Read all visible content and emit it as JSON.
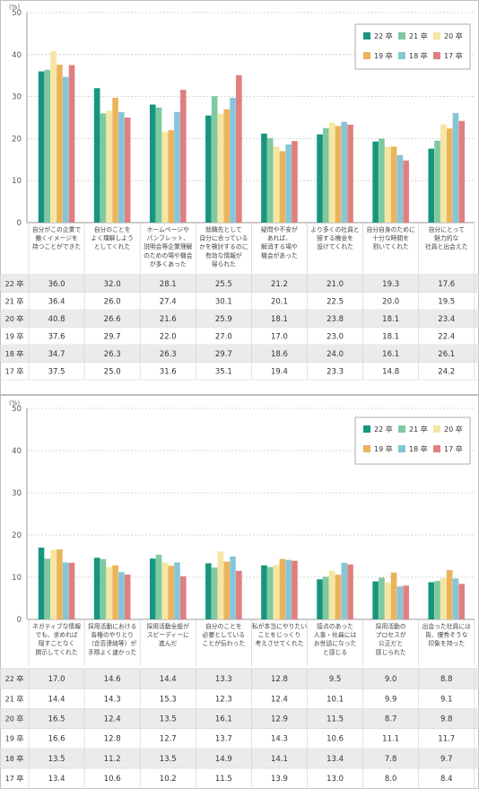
{
  "chart_data": [
    {
      "type": "bar",
      "unit": "(%)",
      "ylim": [
        0,
        50
      ],
      "yticks": [
        "0",
        "10",
        "20",
        "30",
        "40",
        "50"
      ],
      "grid": true,
      "legend_position": "top-right",
      "categories": [
        [
          "自分がこの企業で",
          "働くイメージを",
          "持つことができた"
        ],
        [
          "自分のことを",
          "よく理解しよう",
          "としてくれた"
        ],
        [
          "ホームページや",
          "パンフレット、",
          "説明会等企業理解",
          "のための場や機会",
          "が多くあった"
        ],
        [
          "就職先として",
          "自分に合っている",
          "かを検討するのに",
          "有効な情報が",
          "得られた"
        ],
        [
          "疑問や不安が",
          "あれば、",
          "解消する場や",
          "機会があった"
        ],
        [
          "より多くの社員と",
          "接する機会を",
          "設けてくれた"
        ],
        [
          "自分自身のために",
          "十分な時間を",
          "割いてくれた"
        ],
        [
          "自分にとって",
          "魅力的な",
          "社員と出会えた"
        ]
      ],
      "series": [
        {
          "name": "22 卒",
          "color": "#17957f",
          "values": [
            36.0,
            32.0,
            28.1,
            25.5,
            21.2,
            21.0,
            19.3,
            17.6
          ]
        },
        {
          "name": "21 卒",
          "color": "#7fc9a0",
          "values": [
            36.4,
            26.0,
            27.4,
            30.1,
            20.1,
            22.5,
            20.0,
            19.5
          ]
        },
        {
          "name": "20 卒",
          "color": "#f6e6a1",
          "values": [
            40.8,
            26.6,
            21.6,
            25.9,
            18.1,
            23.8,
            18.1,
            23.4
          ]
        },
        {
          "name": "19 卒",
          "color": "#eab45c",
          "values": [
            37.6,
            29.7,
            22.0,
            27.0,
            17.0,
            23.0,
            18.1,
            22.4
          ]
        },
        {
          "name": "18 卒",
          "color": "#86c5d6",
          "values": [
            34.7,
            26.3,
            26.3,
            29.7,
            18.6,
            24.0,
            16.1,
            26.1
          ]
        },
        {
          "name": "17 卒",
          "color": "#e07f7f",
          "values": [
            37.5,
            25.0,
            31.6,
            35.1,
            19.4,
            23.3,
            14.8,
            24.2
          ]
        }
      ]
    },
    {
      "type": "bar",
      "unit": "(%)",
      "ylim": [
        0,
        50
      ],
      "yticks": [
        "0",
        "10",
        "20",
        "30",
        "40",
        "50"
      ],
      "grid": true,
      "legend_position": "top-right",
      "categories": [
        [
          "ネガティブな情報",
          "でも、求めれば",
          "隠すことなく",
          "開示してくれた"
        ],
        [
          "採用活動における",
          "各種のやりとり",
          "（合否連絡等）が",
          "手際よく速かった"
        ],
        [
          "採用活動全般が",
          "スピーディーに",
          "進んだ"
        ],
        [
          "自分のことを",
          "必要としている",
          "ことが伝わった"
        ],
        [
          "私が本当にやりたい",
          "ことをじっくり",
          "考えさせてくれた"
        ],
        [
          "接点のあった",
          "人事・社員には",
          "お世話になった",
          "と感じる"
        ],
        [
          "採用活動の",
          "プロセスが",
          "公正だと",
          "感じられた"
        ],
        [
          "出会った社員には",
          "皆、優秀そうな",
          "印象を持った"
        ]
      ],
      "series": [
        {
          "name": "22 卒",
          "color": "#17957f",
          "values": [
            17.0,
            14.6,
            14.4,
            13.3,
            12.8,
            9.5,
            9.0,
            8.8
          ]
        },
        {
          "name": "21 卒",
          "color": "#7fc9a0",
          "values": [
            14.4,
            14.3,
            15.3,
            12.3,
            12.4,
            10.1,
            9.9,
            9.1
          ]
        },
        {
          "name": "20 卒",
          "color": "#f6e6a1",
          "values": [
            16.5,
            12.4,
            13.5,
            16.1,
            12.9,
            11.5,
            8.7,
            9.8
          ]
        },
        {
          "name": "19 卒",
          "color": "#eab45c",
          "values": [
            16.6,
            12.8,
            12.7,
            13.7,
            14.3,
            10.6,
            11.1,
            11.7
          ]
        },
        {
          "name": "18 卒",
          "color": "#86c5d6",
          "values": [
            13.5,
            11.2,
            13.5,
            14.9,
            14.1,
            13.4,
            7.8,
            9.7
          ]
        },
        {
          "name": "17 卒",
          "color": "#e07f7f",
          "values": [
            13.4,
            10.6,
            10.2,
            11.5,
            13.9,
            13.0,
            8.0,
            8.4
          ]
        }
      ]
    }
  ]
}
